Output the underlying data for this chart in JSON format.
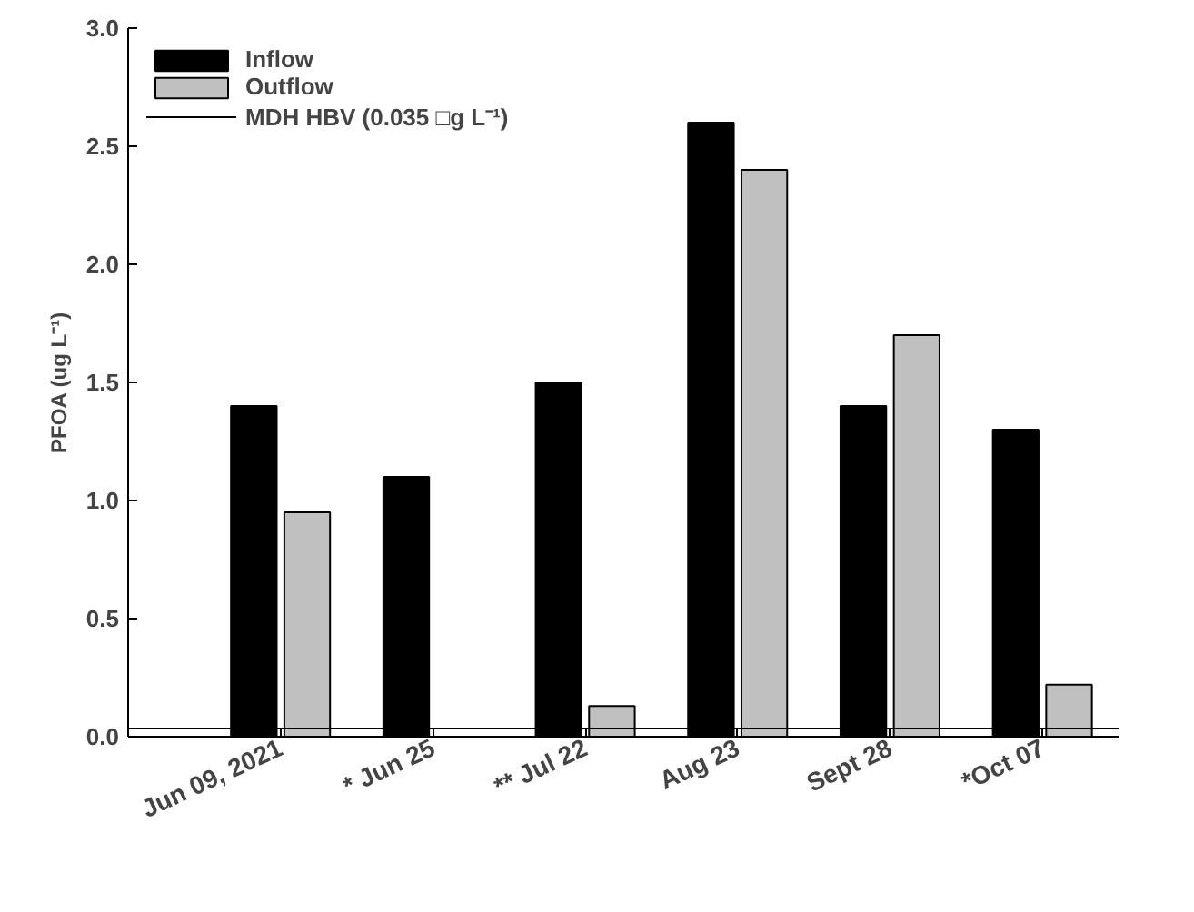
{
  "chart_data": {
    "type": "bar",
    "ylabel": "PFOA (ug L⁻¹)",
    "categories": [
      "Jun 09, 2021",
      "* Jun 25",
      "** Jul 22",
      "Aug 23",
      "Sept 28",
      "*Oct 07"
    ],
    "series": [
      {
        "name": "Inflow",
        "color": "#000000",
        "values": [
          1.4,
          1.1,
          1.5,
          2.6,
          1.4,
          1.3
        ]
      },
      {
        "name": "Outflow",
        "color": "#c0c0c0",
        "values": [
          0.95,
          null,
          0.13,
          2.4,
          1.7,
          0.22
        ]
      }
    ],
    "ref_lines": [
      {
        "axis": "y",
        "value": 0.035,
        "label": "MDH HBV (0.035 □g L⁻¹)",
        "color": "#000000",
        "line_style": "solid"
      }
    ],
    "ylim": [
      0,
      3.0
    ],
    "yticks": [
      {
        "value": 0,
        "label": "0.0"
      },
      {
        "value": 0.5,
        "label": "0.5"
      },
      {
        "value": 1.0,
        "label": "1.0"
      },
      {
        "value": 1.5,
        "label": "1.5"
      },
      {
        "value": 2.0,
        "label": "2.0"
      },
      {
        "value": 2.5,
        "label": "2.5"
      },
      {
        "value": 3.0,
        "label": "3.0"
      }
    ],
    "grid": false,
    "legend": "top left"
  }
}
